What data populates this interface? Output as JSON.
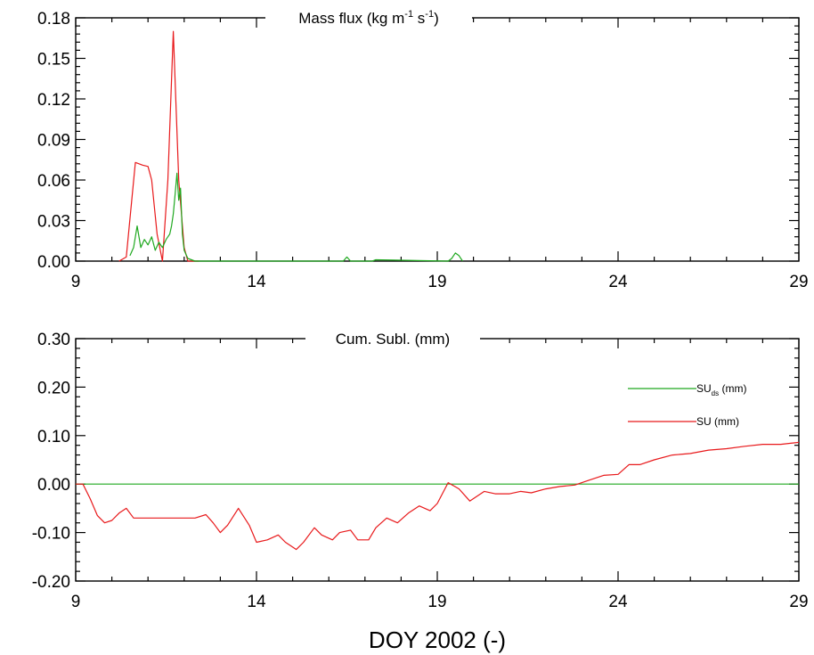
{
  "chart_data": [
    {
      "type": "line",
      "title": "Mass flux (kg m-1 s-1)",
      "title_parts": {
        "base": "Mass flux (kg m",
        "sup1": "-1",
        "mid": " s",
        "sup2": "-1",
        "end": ")"
      },
      "xlim": [
        9,
        29
      ],
      "ylim": [
        0,
        0.18
      ],
      "xticks": [
        "9",
        "14",
        "19",
        "24",
        "29"
      ],
      "yticks": [
        "0.00",
        "0.03",
        "0.06",
        "0.09",
        "0.12",
        "0.15",
        "0.18"
      ],
      "series": [
        {
          "color": "#e8191b",
          "x": [
            10.2,
            10.4,
            10.65,
            10.75,
            10.85,
            11.0,
            11.1,
            11.25,
            11.4,
            11.55,
            11.7,
            11.85,
            12.0,
            12.1,
            12.2,
            12.4
          ],
          "y": [
            0.0,
            0.003,
            0.073,
            0.072,
            0.071,
            0.07,
            0.06,
            0.02,
            0.0,
            0.06,
            0.17,
            0.06,
            0.01,
            0.0,
            0.0,
            0.0
          ]
        },
        {
          "color": "#1fa81f",
          "x": [
            10.5,
            10.6,
            10.7,
            10.8,
            10.9,
            11.0,
            11.1,
            11.2,
            11.3,
            11.4,
            11.5,
            11.6,
            11.65,
            11.7,
            11.75,
            11.8,
            11.85,
            11.9,
            11.95,
            12.0,
            12.1,
            12.3,
            16.4,
            16.5,
            16.6,
            17.2,
            17.3,
            19.3,
            19.4,
            19.5,
            19.6,
            19.7
          ],
          "y": [
            0.004,
            0.01,
            0.026,
            0.01,
            0.016,
            0.012,
            0.018,
            0.008,
            0.014,
            0.01,
            0.016,
            0.02,
            0.026,
            0.035,
            0.05,
            0.065,
            0.045,
            0.054,
            0.02,
            0.008,
            0.002,
            0.0,
            0.0,
            0.003,
            0.0,
            0.0,
            0.001,
            0.0,
            0.002,
            0.006,
            0.004,
            0.0
          ]
        }
      ]
    },
    {
      "type": "line",
      "title": "Cum. Subl. (mm)",
      "xlim": [
        9,
        29
      ],
      "ylim": [
        -0.2,
        0.3
      ],
      "xticks": [
        "9",
        "14",
        "19",
        "24",
        "29"
      ],
      "yticks": [
        "-0.20",
        "-0.10",
        "0.00",
        "0.10",
        "0.20",
        "0.30"
      ],
      "xlabel": "DOY 2002 (-)",
      "series": [
        {
          "name": "SUds (mm)",
          "legend_base": "SU",
          "legend_sub": "ds",
          "legend_end": " (mm)",
          "color": "#1fa81f",
          "x": [
            9,
            29
          ],
          "y": [
            0.0,
            0.0
          ]
        },
        {
          "name": "SU (mm)",
          "legend_base": "SU",
          "legend_sub": "",
          "legend_end": " (mm)",
          "color": "#e8191b",
          "x": [
            9.0,
            9.2,
            9.4,
            9.6,
            9.8,
            10.0,
            10.2,
            10.4,
            10.6,
            10.8,
            11.5,
            12.0,
            12.3,
            12.6,
            12.8,
            13.0,
            13.2,
            13.5,
            13.8,
            14.0,
            14.3,
            14.6,
            14.8,
            15.1,
            15.3,
            15.6,
            15.8,
            16.1,
            16.3,
            16.6,
            16.8,
            17.1,
            17.3,
            17.6,
            17.9,
            18.2,
            18.5,
            18.8,
            19.0,
            19.3,
            19.6,
            19.9,
            20.3,
            20.6,
            21.0,
            21.3,
            21.6,
            22.0,
            22.4,
            22.8,
            23.2,
            23.6,
            24.0,
            24.3,
            24.6,
            25.0,
            25.5,
            26.0,
            26.5,
            27.0,
            27.5,
            28.0,
            28.5,
            29.0
          ],
          "y": [
            0.0,
            0.0,
            -0.03,
            -0.065,
            -0.08,
            -0.075,
            -0.06,
            -0.05,
            -0.07,
            -0.07,
            -0.07,
            -0.07,
            -0.07,
            -0.063,
            -0.08,
            -0.1,
            -0.085,
            -0.05,
            -0.085,
            -0.12,
            -0.115,
            -0.105,
            -0.12,
            -0.135,
            -0.12,
            -0.09,
            -0.105,
            -0.115,
            -0.1,
            -0.095,
            -0.115,
            -0.115,
            -0.09,
            -0.07,
            -0.08,
            -0.06,
            -0.045,
            -0.055,
            -0.04,
            0.003,
            -0.01,
            -0.035,
            -0.015,
            -0.02,
            -0.02,
            -0.015,
            -0.018,
            -0.01,
            -0.005,
            -0.002,
            0.008,
            0.018,
            0.02,
            0.04,
            0.04,
            0.05,
            0.06,
            0.063,
            0.07,
            0.073,
            0.078,
            0.082,
            0.082,
            0.086
          ]
        }
      ]
    }
  ]
}
